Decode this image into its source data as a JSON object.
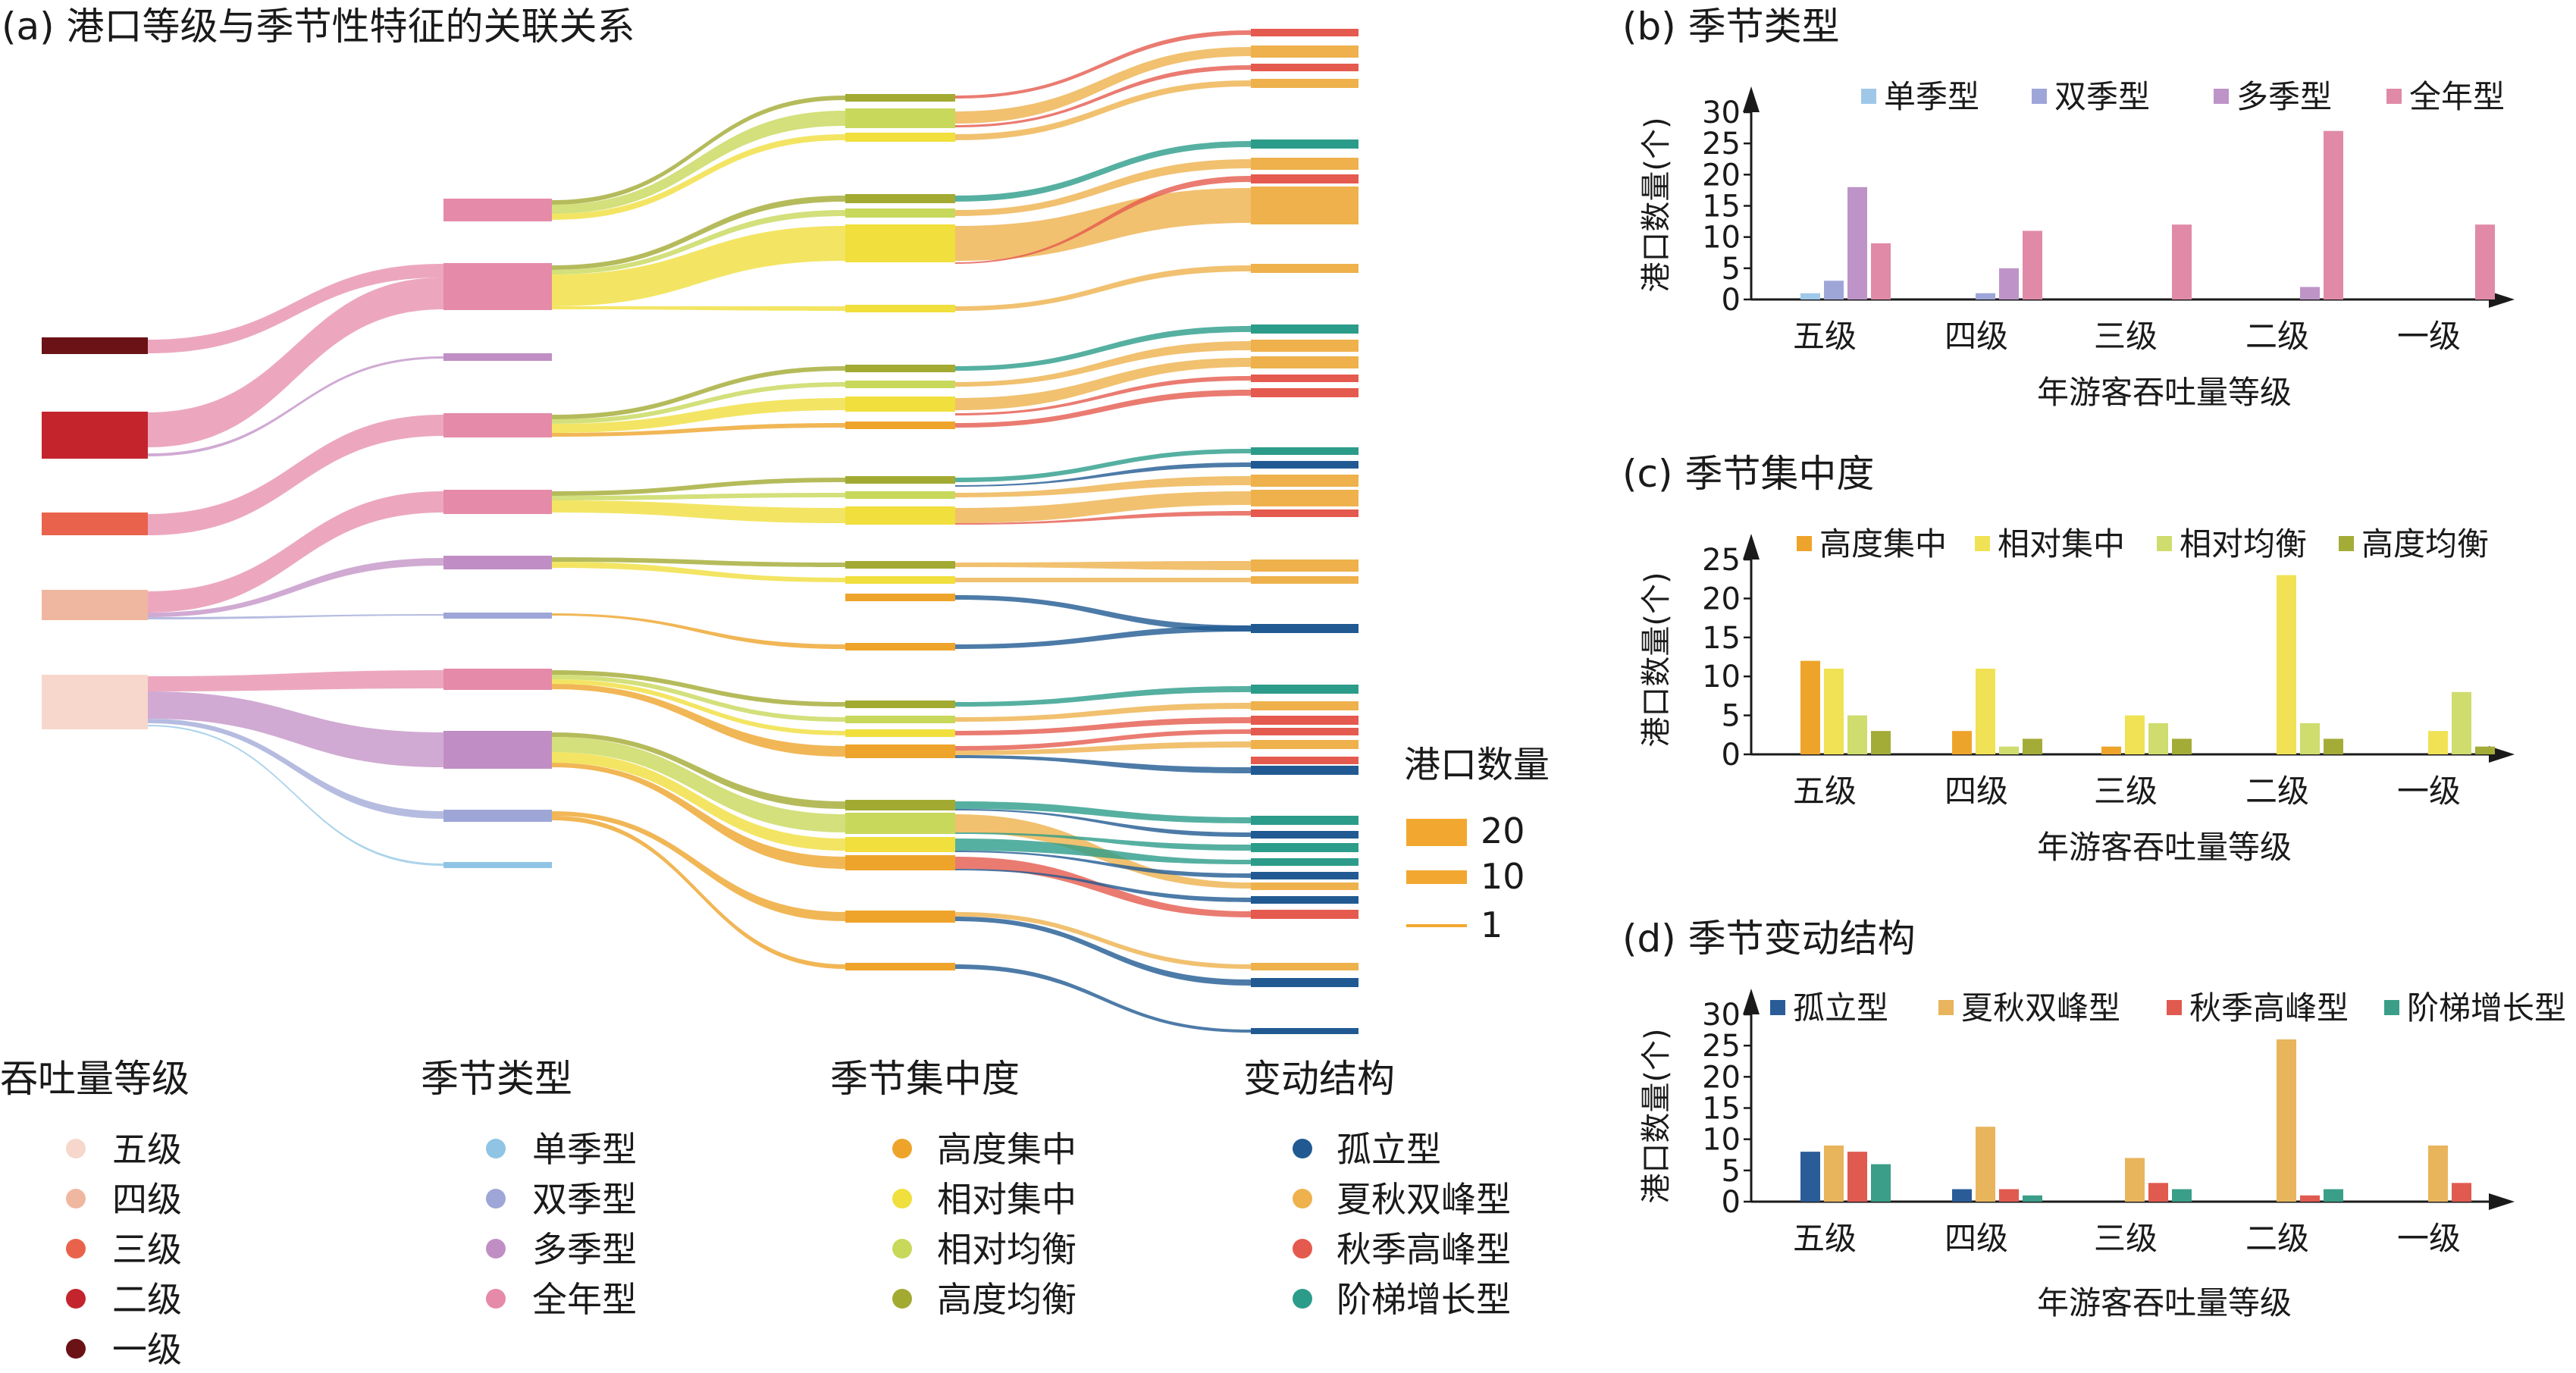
{
  "sankey": {
    "title": "(a) 港口等级与季节性特征的关联关系",
    "size_legend": {
      "title": "港口数量",
      "items": [
        "20",
        "10",
        "1"
      ]
    },
    "columns": [
      {
        "title": "吞吐量等级",
        "items": [
          {
            "label": "五级",
            "color": "#f7d7cb"
          },
          {
            "label": "四级",
            "color": "#f0b7a0"
          },
          {
            "label": "三级",
            "color": "#e9634c"
          },
          {
            "label": "二级",
            "color": "#c4242c"
          },
          {
            "label": "一级",
            "color": "#6b1216"
          }
        ]
      },
      {
        "title": "季节类型",
        "items": [
          {
            "label": "单季型",
            "color": "#8fc4e4"
          },
          {
            "label": "双季型",
            "color": "#9da6d6"
          },
          {
            "label": "多季型",
            "color": "#c08ec4"
          },
          {
            "label": "全年型",
            "color": "#e58aa8"
          }
        ]
      },
      {
        "title": "季节集中度",
        "items": [
          {
            "label": "高度集中",
            "color": "#eea42a"
          },
          {
            "label": "相对集中",
            "color": "#f0df3c"
          },
          {
            "label": "相对均衡",
            "color": "#c8d85a"
          },
          {
            "label": "高度均衡",
            "color": "#a2aa32"
          }
        ]
      },
      {
        "title": "变动结构",
        "items": [
          {
            "label": "孤立型",
            "color": "#215a92"
          },
          {
            "label": "夏秋双峰型",
            "color": "#eeb14c"
          },
          {
            "label": "秋季高峰型",
            "color": "#e55a4e"
          },
          {
            "label": "阶梯增长型",
            "color": "#2c9c8a"
          }
        ]
      }
    ]
  },
  "chart_data": [
    {
      "panel": "b",
      "type": "bar",
      "title": "(b) 季节类型",
      "xlabel": "年游客吞吐量等级",
      "ylabel": "港口数量(个)",
      "ylim": [
        0,
        30
      ],
      "yticks": [
        0,
        5,
        10,
        15,
        20,
        25,
        30
      ],
      "legend": "top",
      "categories": [
        "五级",
        "四级",
        "三级",
        "二级",
        "一级"
      ],
      "series": [
        {
          "name": "单季型",
          "color": "#9fc8e8",
          "values": [
            1,
            0,
            0,
            0,
            0
          ]
        },
        {
          "name": "双季型",
          "color": "#9ea6d8",
          "values": [
            3,
            1,
            0,
            0,
            0
          ]
        },
        {
          "name": "多季型",
          "color": "#be94c8",
          "values": [
            18,
            5,
            0,
            2,
            0
          ]
        },
        {
          "name": "全年型",
          "color": "#e08aa8",
          "values": [
            9,
            11,
            12,
            27,
            12
          ]
        }
      ]
    },
    {
      "panel": "c",
      "type": "bar",
      "title": "(c) 季节集中度",
      "xlabel": "年游客吞吐量等级",
      "ylabel": "港口数量(个)",
      "ylim": [
        0,
        25
      ],
      "yticks": [
        0,
        5,
        10,
        15,
        20,
        25
      ],
      "legend": "top",
      "categories": [
        "五级",
        "四级",
        "三级",
        "二级",
        "一级"
      ],
      "series": [
        {
          "name": "高度集中",
          "color": "#eea42a",
          "values": [
            12,
            3,
            1,
            0,
            0
          ]
        },
        {
          "name": "相对集中",
          "color": "#f0e254",
          "values": [
            11,
            11,
            5,
            23,
            3
          ]
        },
        {
          "name": "相对均衡",
          "color": "#cfdc6e",
          "values": [
            5,
            1,
            4,
            4,
            8
          ]
        },
        {
          "name": "高度均衡",
          "color": "#a4ac38",
          "values": [
            3,
            2,
            2,
            2,
            1
          ]
        }
      ]
    },
    {
      "panel": "d",
      "type": "bar",
      "title": "(d) 季节变动结构",
      "xlabel": "年游客吞吐量等级",
      "ylabel": "港口数量(个)",
      "ylim": [
        0,
        30
      ],
      "yticks": [
        0,
        5,
        10,
        15,
        20,
        25,
        30
      ],
      "legend": "top",
      "categories": [
        "五级",
        "四级",
        "三级",
        "二级",
        "一级"
      ],
      "series": [
        {
          "name": "孤立型",
          "color": "#2a5c98",
          "values": [
            8,
            2,
            0,
            0,
            0
          ]
        },
        {
          "name": "夏秋双峰型",
          "color": "#e8b45c",
          "values": [
            9,
            12,
            7,
            26,
            9
          ]
        },
        {
          "name": "秋季高峰型",
          "color": "#e05a50",
          "values": [
            8,
            2,
            3,
            1,
            3
          ]
        },
        {
          "name": "阶梯增长型",
          "color": "#3a9e88",
          "values": [
            6,
            1,
            2,
            2,
            0
          ]
        }
      ]
    }
  ]
}
